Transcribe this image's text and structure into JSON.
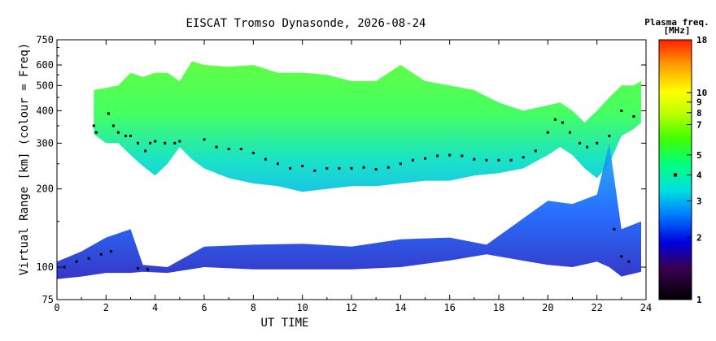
{
  "chart_data": {
    "type": "scatter",
    "title": "EISCAT Tromso Dynasonde, 2026-08-24",
    "xlabel": "UT TIME",
    "ylabel": "Virtual Range [km] (colour = Freq)",
    "xlim": [
      0,
      24
    ],
    "ylim": [
      75,
      750
    ],
    "yscale": "log",
    "x_ticks": [
      0,
      2,
      4,
      6,
      8,
      10,
      12,
      14,
      16,
      18,
      20,
      22,
      24
    ],
    "y_ticks": [
      75,
      100,
      200,
      300,
      400,
      500,
      600,
      750
    ],
    "colorbar": {
      "title": "Plasma freq.",
      "unit": "[MHz]",
      "scale": "log",
      "range": [
        1,
        18
      ],
      "ticks": [
        1,
        2,
        3,
        4,
        5,
        7,
        8,
        9,
        10,
        18
      ],
      "marker_value": 4,
      "colors": [
        "#000000",
        "#3a0050",
        "#0000e0",
        "#0080ff",
        "#00e0e0",
        "#00ff80",
        "#40ff00",
        "#c0ff00",
        "#ffff00",
        "#ffa000",
        "#ff2000"
      ]
    },
    "f_layer_band": [
      {
        "t": 1.5,
        "bottom": 325,
        "top": 480
      },
      {
        "t": 2.0,
        "bottom": 300,
        "top": 490
      },
      {
        "t": 2.5,
        "bottom": 300,
        "top": 500
      },
      {
        "t": 3.0,
        "bottom": 270,
        "top": 560
      },
      {
        "t": 3.5,
        "bottom": 245,
        "top": 540
      },
      {
        "t": 4.0,
        "bottom": 225,
        "top": 560
      },
      {
        "t": 4.5,
        "bottom": 250,
        "top": 560
      },
      {
        "t": 5.0,
        "bottom": 290,
        "top": 520
      },
      {
        "t": 5.5,
        "bottom": 260,
        "top": 620
      },
      {
        "t": 6.0,
        "bottom": 240,
        "top": 600
      },
      {
        "t": 7.0,
        "bottom": 220,
        "top": 590
      },
      {
        "t": 8.0,
        "bottom": 210,
        "top": 600
      },
      {
        "t": 9.0,
        "bottom": 205,
        "top": 560
      },
      {
        "t": 10.0,
        "bottom": 195,
        "top": 560
      },
      {
        "t": 11.0,
        "bottom": 200,
        "top": 550
      },
      {
        "t": 12.0,
        "bottom": 205,
        "top": 520
      },
      {
        "t": 13.0,
        "bottom": 205,
        "top": 520
      },
      {
        "t": 14.0,
        "bottom": 210,
        "top": 600
      },
      {
        "t": 15.0,
        "bottom": 215,
        "top": 520
      },
      {
        "t": 16.0,
        "bottom": 215,
        "top": 500
      },
      {
        "t": 17.0,
        "bottom": 225,
        "top": 480
      },
      {
        "t": 18.0,
        "bottom": 230,
        "top": 430
      },
      {
        "t": 19.0,
        "bottom": 240,
        "top": 400
      },
      {
        "t": 20.0,
        "bottom": 270,
        "top": 420
      },
      {
        "t": 20.5,
        "bottom": 290,
        "top": 430
      },
      {
        "t": 21.0,
        "bottom": 270,
        "top": 400
      },
      {
        "t": 21.5,
        "bottom": 240,
        "top": 360
      },
      {
        "t": 22.0,
        "bottom": 220,
        "top": 400
      },
      {
        "t": 22.5,
        "bottom": 250,
        "top": 450
      },
      {
        "t": 23.0,
        "bottom": 320,
        "top": 500
      },
      {
        "t": 23.5,
        "bottom": 340,
        "top": 500
      },
      {
        "t": 23.8,
        "bottom": 360,
        "top": 520
      }
    ],
    "e_layer_band": [
      {
        "t": 0.0,
        "bottom": 90,
        "top": 105
      },
      {
        "t": 1.0,
        "bottom": 92,
        "top": 115
      },
      {
        "t": 2.0,
        "bottom": 95,
        "top": 130
      },
      {
        "t": 3.0,
        "bottom": 95,
        "top": 140
      },
      {
        "t": 3.5,
        "bottom": 96,
        "top": 102
      },
      {
        "t": 4.5,
        "bottom": 95,
        "top": 100
      },
      {
        "t": 6.0,
        "bottom": 100,
        "top": 120
      },
      {
        "t": 8.0,
        "bottom": 98,
        "top": 122
      },
      {
        "t": 10.0,
        "bottom": 98,
        "top": 123
      },
      {
        "t": 12.0,
        "bottom": 98,
        "top": 120
      },
      {
        "t": 14.0,
        "bottom": 100,
        "top": 128
      },
      {
        "t": 16.0,
        "bottom": 106,
        "top": 130
      },
      {
        "t": 17.5,
        "bottom": 112,
        "top": 122
      },
      {
        "t": 20.0,
        "bottom": 102,
        "top": 180
      },
      {
        "t": 21.0,
        "bottom": 100,
        "top": 175
      },
      {
        "t": 22.0,
        "bottom": 105,
        "top": 190
      },
      {
        "t": 22.5,
        "bottom": 100,
        "top": 300
      },
      {
        "t": 23.0,
        "bottom": 92,
        "top": 140
      },
      {
        "t": 23.8,
        "bottom": 96,
        "top": 150
      }
    ],
    "trace_points": [
      {
        "t": 1.5,
        "r": 350
      },
      {
        "t": 1.6,
        "r": 330
      },
      {
        "t": 2.1,
        "r": 390
      },
      {
        "t": 2.3,
        "r": 350
      },
      {
        "t": 2.5,
        "r": 330
      },
      {
        "t": 2.8,
        "r": 320
      },
      {
        "t": 3.0,
        "r": 320
      },
      {
        "t": 3.3,
        "r": 300
      },
      {
        "t": 3.6,
        "r": 280
      },
      {
        "t": 3.8,
        "r": 300
      },
      {
        "t": 4.0,
        "r": 305
      },
      {
        "t": 4.4,
        "r": 300
      },
      {
        "t": 4.8,
        "r": 300
      },
      {
        "t": 5.0,
        "r": 305
      },
      {
        "t": 6.0,
        "r": 310
      },
      {
        "t": 6.5,
        "r": 290
      },
      {
        "t": 7.0,
        "r": 285
      },
      {
        "t": 7.5,
        "r": 285
      },
      {
        "t": 8.0,
        "r": 275
      },
      {
        "t": 8.5,
        "r": 260
      },
      {
        "t": 9.0,
        "r": 250
      },
      {
        "t": 9.5,
        "r": 240
      },
      {
        "t": 10.0,
        "r": 245
      },
      {
        "t": 10.5,
        "r": 235
      },
      {
        "t": 11.0,
        "r": 240
      },
      {
        "t": 11.5,
        "r": 240
      },
      {
        "t": 12.0,
        "r": 240
      },
      {
        "t": 12.5,
        "r": 242
      },
      {
        "t": 13.0,
        "r": 238
      },
      {
        "t": 13.5,
        "r": 242
      },
      {
        "t": 14.0,
        "r": 250
      },
      {
        "t": 14.5,
        "r": 258
      },
      {
        "t": 15.0,
        "r": 262
      },
      {
        "t": 15.5,
        "r": 268
      },
      {
        "t": 16.0,
        "r": 270
      },
      {
        "t": 16.5,
        "r": 268
      },
      {
        "t": 17.0,
        "r": 260
      },
      {
        "t": 17.5,
        "r": 258
      },
      {
        "t": 18.0,
        "r": 258
      },
      {
        "t": 18.5,
        "r": 258
      },
      {
        "t": 19.0,
        "r": 265
      },
      {
        "t": 19.5,
        "r": 280
      },
      {
        "t": 20.0,
        "r": 330
      },
      {
        "t": 20.3,
        "r": 370
      },
      {
        "t": 20.6,
        "r": 360
      },
      {
        "t": 20.9,
        "r": 330
      },
      {
        "t": 21.3,
        "r": 300
      },
      {
        "t": 21.6,
        "r": 290
      },
      {
        "t": 22.0,
        "r": 300
      },
      {
        "t": 22.5,
        "r": 320
      },
      {
        "t": 23.0,
        "r": 400
      },
      {
        "t": 23.5,
        "r": 380
      },
      {
        "t": 0.3,
        "r": 100
      },
      {
        "t": 0.8,
        "r": 105
      },
      {
        "t": 1.3,
        "r": 108
      },
      {
        "t": 1.8,
        "r": 112
      },
      {
        "t": 2.2,
        "r": 115
      },
      {
        "t": 3.3,
        "r": 99
      },
      {
        "t": 3.7,
        "r": 98
      },
      {
        "t": 22.7,
        "r": 140
      },
      {
        "t": 23.0,
        "r": 110
      },
      {
        "t": 23.3,
        "r": 105
      }
    ]
  }
}
